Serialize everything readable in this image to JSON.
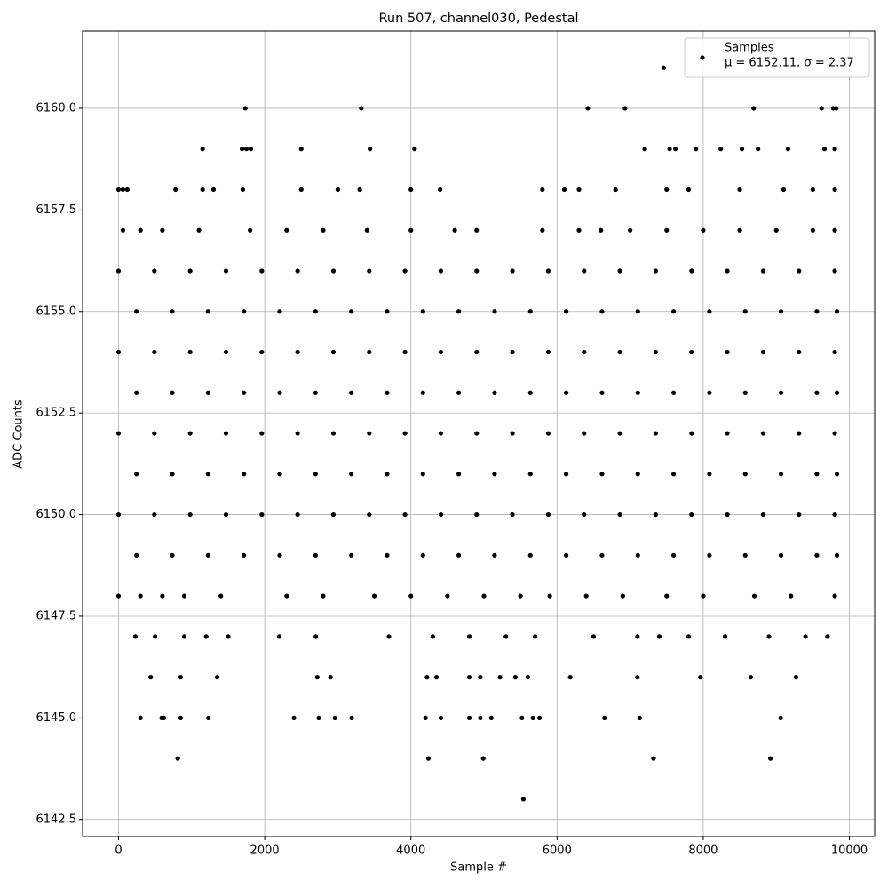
{
  "chart_data": {
    "type": "scatter",
    "title": "Run 507, channel030, Pedestal",
    "xlabel": "Sample #",
    "ylabel": "ADC Counts",
    "annotation": "μ = 6152.11, σ = 2.37",
    "legend": "upper right",
    "grid": true,
    "xlim": [
      -492,
      10346
    ],
    "ylim": [
      6142.08,
      6161.9
    ],
    "xticks": [
      0,
      2000,
      4000,
      6000,
      8000,
      10000
    ],
    "yticks": [
      6142.5,
      {
        "value": 6145,
        "label": "6145.0"
      },
      6147.5,
      {
        "value": 6150,
        "label": "6150.0"
      },
      6152.5,
      {
        "value": 6155,
        "label": "6155.0"
      },
      6157.5,
      {
        "value": 6160,
        "label": "6160.0"
      }
    ],
    "x": [
      7460,
      1735,
      3320,
      6420,
      6930,
      8690,
      9620,
      9780,
      9820,
      1150,
      1690,
      1750,
      1810,
      2500,
      3440,
      4050,
      7200,
      7540,
      7620,
      7900,
      8240,
      8530,
      8750,
      9160,
      9660,
      9800,
      0,
      60,
      120,
      780,
      1150,
      1300,
      1700,
      2500,
      3000,
      3300,
      4000,
      4400,
      5800,
      6100,
      6300,
      6800,
      7500,
      7800,
      8500,
      9100,
      9500,
      9800,
      60,
      300,
      600,
      1100,
      1800,
      2300,
      2800,
      3400,
      4000,
      4600,
      4900,
      5800,
      6300,
      6600,
      7000,
      7500,
      8000,
      8500,
      9000,
      9500,
      9800,
      0,
      490,
      980,
      1470,
      1960,
      2450,
      2940,
      3430,
      3920,
      4410,
      4900,
      5390,
      5880,
      6370,
      6860,
      7350,
      7840,
      8330,
      8820,
      9310,
      9800,
      245,
      735,
      1225,
      1715,
      2205,
      2695,
      3185,
      3675,
      4165,
      4655,
      5145,
      5635,
      6125,
      6615,
      7105,
      7595,
      8085,
      8575,
      9065,
      9555,
      9830,
      0,
      490,
      980,
      1470,
      1960,
      2450,
      2940,
      3430,
      3920,
      4410,
      4900,
      5390,
      5880,
      6370,
      6860,
      7350,
      7840,
      8330,
      8820,
      9310,
      9800,
      245,
      735,
      1225,
      1715,
      2205,
      2695,
      3185,
      3675,
      4165,
      4655,
      5145,
      5635,
      6125,
      6615,
      7105,
      7595,
      8085,
      8575,
      9065,
      9555,
      9830,
      0,
      490,
      980,
      1470,
      1960,
      2450,
      2940,
      3430,
      3920,
      4410,
      4900,
      5390,
      5880,
      6370,
      6860,
      7350,
      7840,
      8330,
      8820,
      9310,
      9800,
      245,
      735,
      1225,
      1715,
      2205,
      2695,
      3185,
      3675,
      4165,
      4655,
      5145,
      5635,
      6125,
      6615,
      7105,
      7595,
      8085,
      8575,
      9065,
      9555,
      9830,
      0,
      490,
      980,
      1470,
      1960,
      2450,
      2940,
      3430,
      3920,
      4410,
      4900,
      5390,
      5880,
      6370,
      6860,
      7350,
      7840,
      8330,
      8820,
      9310,
      9800,
      245,
      735,
      1225,
      1715,
      2205,
      2695,
      3185,
      3675,
      4165,
      4655,
      5145,
      5635,
      6125,
      6615,
      7105,
      7595,
      8085,
      8575,
      9065,
      9555,
      9830,
      0,
      300,
      600,
      900,
      1400,
      2300,
      2800,
      3500,
      4000,
      4500,
      5000,
      5500,
      5900,
      6400,
      6900,
      7500,
      8000,
      8700,
      9200,
      9800,
      230,
      500,
      900,
      1200,
      1500,
      2200,
      2700,
      3700,
      4300,
      4800,
      5300,
      5700,
      6500,
      7100,
      7400,
      7800,
      8300,
      8900,
      9400,
      9700,
      440,
      850,
      1350,
      2720,
      2900,
      4220,
      4350,
      4800,
      4950,
      5220,
      5430,
      5600,
      6180,
      7100,
      7960,
      8650,
      9270,
      300,
      590,
      620,
      850,
      1230,
      2400,
      2740,
      2960,
      3190,
      4200,
      4410,
      4800,
      4950,
      5100,
      5520,
      5670,
      5760,
      6650,
      7130,
      9060,
      810,
      4240,
      4990,
      7320,
      8920,
      5540
    ],
    "series": [
      {
        "name": "Samples",
        "color": "#000000",
        "values": [
          6161,
          6160,
          6160,
          6160,
          6160,
          6160,
          6160,
          6160,
          6160,
          6159,
          6159,
          6159,
          6159,
          6159,
          6159,
          6159,
          6159,
          6159,
          6159,
          6159,
          6159,
          6159,
          6159,
          6159,
          6159,
          6159,
          6158,
          6158,
          6158,
          6158,
          6158,
          6158,
          6158,
          6158,
          6158,
          6158,
          6158,
          6158,
          6158,
          6158,
          6158,
          6158,
          6158,
          6158,
          6158,
          6158,
          6158,
          6158,
          6157,
          6157,
          6157,
          6157,
          6157,
          6157,
          6157,
          6157,
          6157,
          6157,
          6157,
          6157,
          6157,
          6157,
          6157,
          6157,
          6157,
          6157,
          6157,
          6157,
          6157,
          6156,
          6156,
          6156,
          6156,
          6156,
          6156,
          6156,
          6156,
          6156,
          6156,
          6156,
          6156,
          6156,
          6156,
          6156,
          6156,
          6156,
          6156,
          6156,
          6156,
          6156,
          6155,
          6155,
          6155,
          6155,
          6155,
          6155,
          6155,
          6155,
          6155,
          6155,
          6155,
          6155,
          6155,
          6155,
          6155,
          6155,
          6155,
          6155,
          6155,
          6155,
          6155,
          6154,
          6154,
          6154,
          6154,
          6154,
          6154,
          6154,
          6154,
          6154,
          6154,
          6154,
          6154,
          6154,
          6154,
          6154,
          6154,
          6154,
          6154,
          6154,
          6154,
          6154,
          6153,
          6153,
          6153,
          6153,
          6153,
          6153,
          6153,
          6153,
          6153,
          6153,
          6153,
          6153,
          6153,
          6153,
          6153,
          6153,
          6153,
          6153,
          6153,
          6153,
          6153,
          6152,
          6152,
          6152,
          6152,
          6152,
          6152,
          6152,
          6152,
          6152,
          6152,
          6152,
          6152,
          6152,
          6152,
          6152,
          6152,
          6152,
          6152,
          6152,
          6152,
          6152,
          6151,
          6151,
          6151,
          6151,
          6151,
          6151,
          6151,
          6151,
          6151,
          6151,
          6151,
          6151,
          6151,
          6151,
          6151,
          6151,
          6151,
          6151,
          6151,
          6151,
          6151,
          6150,
          6150,
          6150,
          6150,
          6150,
          6150,
          6150,
          6150,
          6150,
          6150,
          6150,
          6150,
          6150,
          6150,
          6150,
          6150,
          6150,
          6150,
          6150,
          6150,
          6150,
          6149,
          6149,
          6149,
          6149,
          6149,
          6149,
          6149,
          6149,
          6149,
          6149,
          6149,
          6149,
          6149,
          6149,
          6149,
          6149,
          6149,
          6149,
          6149,
          6149,
          6149,
          6148,
          6148,
          6148,
          6148,
          6148,
          6148,
          6148,
          6148,
          6148,
          6148,
          6148,
          6148,
          6148,
          6148,
          6148,
          6148,
          6148,
          6148,
          6148,
          6148,
          6147,
          6147,
          6147,
          6147,
          6147,
          6147,
          6147,
          6147,
          6147,
          6147,
          6147,
          6147,
          6147,
          6147,
          6147,
          6147,
          6147,
          6147,
          6147,
          6147,
          6146,
          6146,
          6146,
          6146,
          6146,
          6146,
          6146,
          6146,
          6146,
          6146,
          6146,
          6146,
          6146,
          6146,
          6146,
          6146,
          6146,
          6145,
          6145,
          6145,
          6145,
          6145,
          6145,
          6145,
          6145,
          6145,
          6145,
          6145,
          6145,
          6145,
          6145,
          6145,
          6145,
          6145,
          6145,
          6145,
          6145,
          6144,
          6144,
          6144,
          6144,
          6144,
          6143
        ]
      }
    ]
  }
}
